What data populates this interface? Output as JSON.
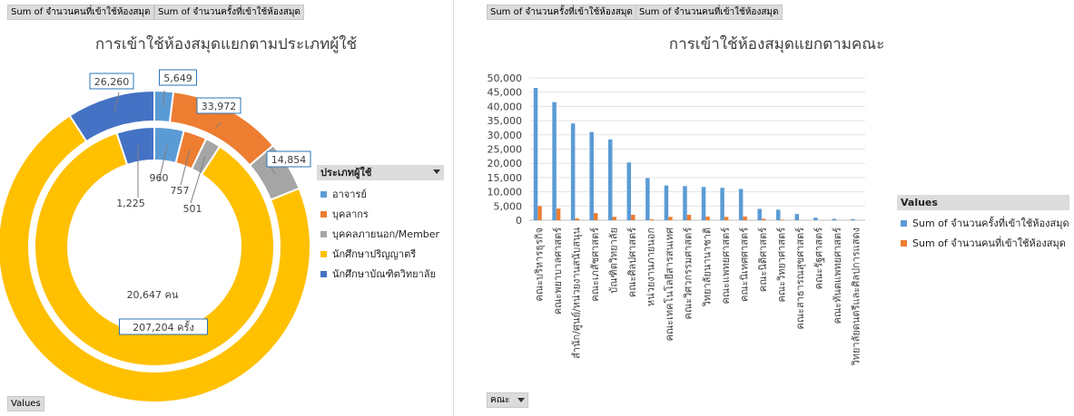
{
  "left": {
    "field_buttons": [
      "Sum of จำนวนคนที่เข้าใช้ห้องสมุด",
      "Sum of จำนวนครั้งที่เข้าใช้ห้องสมุด"
    ],
    "values_button": "Values",
    "legend_title": "ประเภทผู้ใช้"
  },
  "right": {
    "field_buttons": [
      "Sum of จำนวนครั้งที่เข้าใช้ห้องสมุด",
      "Sum of จำนวนคนที่เข้าใช้ห้องสมุด"
    ],
    "axis_button": "คณะ",
    "legend_title": "Values"
  },
  "chart_data": [
    {
      "type": "pie",
      "subtype": "doughnut",
      "title": "การเข้าใช้ห้องสมุดแยกตามประเภทผู้ใช้",
      "categories": [
        "อาจารย์",
        "บุคลากร",
        "บุคคลภายนอก/Member",
        "นักศึกษาปริญญาตรี",
        "นักศึกษาบัณฑิตวิทยาลัย"
      ],
      "colors": [
        "#5b9bd5",
        "#ed7d31",
        "#a5a5a5",
        "#ffc000",
        "#4472c4"
      ],
      "series": [
        {
          "name": "Sum of จำนวนคนที่เข้าใช้ห้องสมุด",
          "ring": "inner",
          "values": [
            960,
            757,
            501,
            20647,
            1225
          ],
          "labels": [
            "960",
            "757",
            "501",
            "20,647 คน",
            "1,225"
          ]
        },
        {
          "name": "Sum of จำนวนครั้งที่เข้าใช้ห้องสมุด",
          "ring": "outer",
          "values": [
            5649,
            33972,
            14854,
            207204,
            26260
          ],
          "labels": [
            "5,649",
            "33,972",
            "14,854",
            "207,204 ครั้ง",
            "26,260"
          ]
        }
      ],
      "legend": "right"
    },
    {
      "type": "bar",
      "title": "การเข้าใช้ห้องสมุดแยกตามคณะ",
      "categories": [
        "คณะบริหารธุรกิจ",
        "คณะพยาบาลศาสตร์",
        "สำนัก/ศูนย์/หน่วยงานสนับสนุน",
        "คณะเภสัชศาสตร์",
        "บัณฑิตวิทยาลัย",
        "คณะศิลปศาสตร์",
        "หน่วยงานภายนอก",
        "คณะเทคโนโลยีสารสนเทศ",
        "คณะวิศวกรรมศาสตร์",
        "วิทยาลัยนานาชาติ",
        "คณะแพทยศาสตร์",
        "คณะนิเทศศาสตร์",
        "คณะนิติศาสตร์",
        "คณะวิทยาศาสตร์",
        "คณะสาธารณสุขศาสตร์",
        "คณะรัฐศาสตร์",
        "คณะทันตแพทยศาสตร์",
        "วิทยาลัยดนตรีและศิลปการแสดง"
      ],
      "series": [
        {
          "name": "Sum of จำนวนครั้งที่เข้าใช้ห้องสมุด",
          "color": "#5b9bd5",
          "values": [
            46500,
            41500,
            34000,
            31000,
            28400,
            20300,
            14800,
            12200,
            12000,
            11700,
            11400,
            11000,
            4000,
            3700,
            2200,
            900,
            500,
            400
          ]
        },
        {
          "name": "Sum of จำนวนคนที่เข้าใช้ห้องสมุด",
          "color": "#ed7d31",
          "values": [
            5000,
            4100,
            600,
            2500,
            1200,
            1900,
            300,
            1200,
            1900,
            1300,
            1200,
            1300,
            500,
            200,
            0,
            0,
            0,
            0
          ]
        }
      ],
      "ylim": [
        0,
        50000
      ],
      "yticks": [
        "0",
        "5,000",
        "10,000",
        "15,000",
        "20,000",
        "25,000",
        "30,000",
        "35,000",
        "40,000",
        "45,000",
        "50,000"
      ],
      "grid": true,
      "legend": "right"
    }
  ]
}
